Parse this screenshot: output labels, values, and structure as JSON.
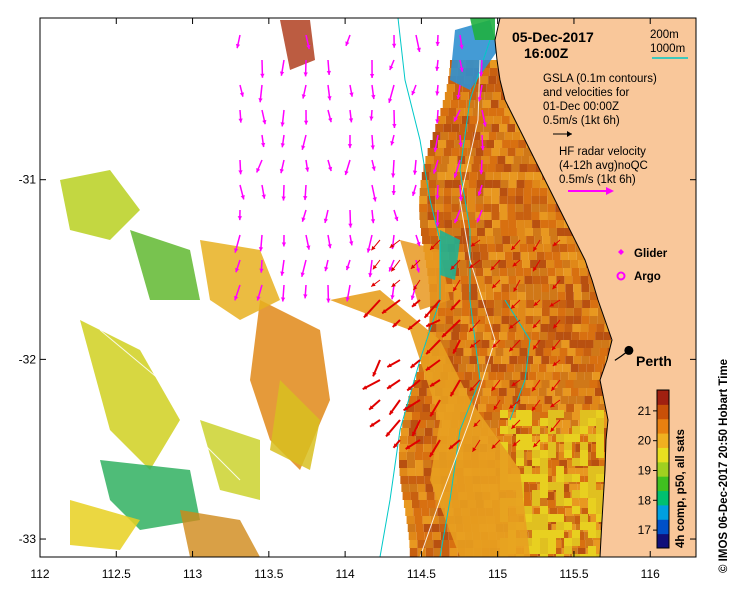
{
  "title": {
    "date": "05-Dec-2017",
    "time": "16:00Z"
  },
  "bathymetry_legend": {
    "line1": "200m",
    "line2": "1000m",
    "color": "#00c8c8"
  },
  "gsla_note": {
    "line1": "GSLA (0.1m contours)",
    "line2": "and velocities for",
    "line3": "01-Dec 00:00Z",
    "line4": "0.5m/s (1kt 6h)"
  },
  "hf_note": {
    "line1": "HF radar velocity",
    "line2": "(4-12h avg)noQC",
    "line3": "0.5m/s (1kt 6h)",
    "color": "#ff00ff"
  },
  "legend": {
    "glider": "Glider",
    "argo": "Argo",
    "glider_color": "#ff00ff",
    "argo_color": "#ff00ff"
  },
  "city": {
    "name": "Perth",
    "lon": 115.86,
    "lat": -31.95
  },
  "x_axis": {
    "ticks": [
      "112",
      "112.5",
      "113",
      "113.5",
      "114",
      "114.5",
      "115",
      "115.5",
      "116"
    ],
    "values": [
      112,
      112.5,
      113,
      113.5,
      114,
      114.5,
      115,
      115.5,
      116
    ],
    "range": [
      112,
      116.3
    ]
  },
  "y_axis": {
    "ticks": [
      "-31",
      "-32",
      "-33"
    ],
    "values": [
      -31,
      -32,
      -33
    ],
    "range": [
      -33.1,
      -30.1
    ]
  },
  "colorbar": {
    "label": "4h comp, p50, all sats",
    "ticks": [
      "17",
      "18",
      "19",
      "20",
      "21"
    ],
    "values": [
      17,
      18,
      19,
      20,
      21
    ],
    "range": [
      16.4,
      21.7
    ],
    "colors": [
      "#10107a",
      "#0050c8",
      "#00a0e0",
      "#00c070",
      "#40c020",
      "#a0d020",
      "#e8e020",
      "#f0b020",
      "#e88010",
      "#c85008",
      "#a02010"
    ]
  },
  "credit": "© IMOS 06-Dec-2017 20:50 Hobart Time",
  "colors": {
    "land": "#f9c79a",
    "sea_bg": "#ffffff",
    "hf_arrow": "#ff00ff",
    "gsla_arrow": "#e00000",
    "coast": "#000000"
  }
}
